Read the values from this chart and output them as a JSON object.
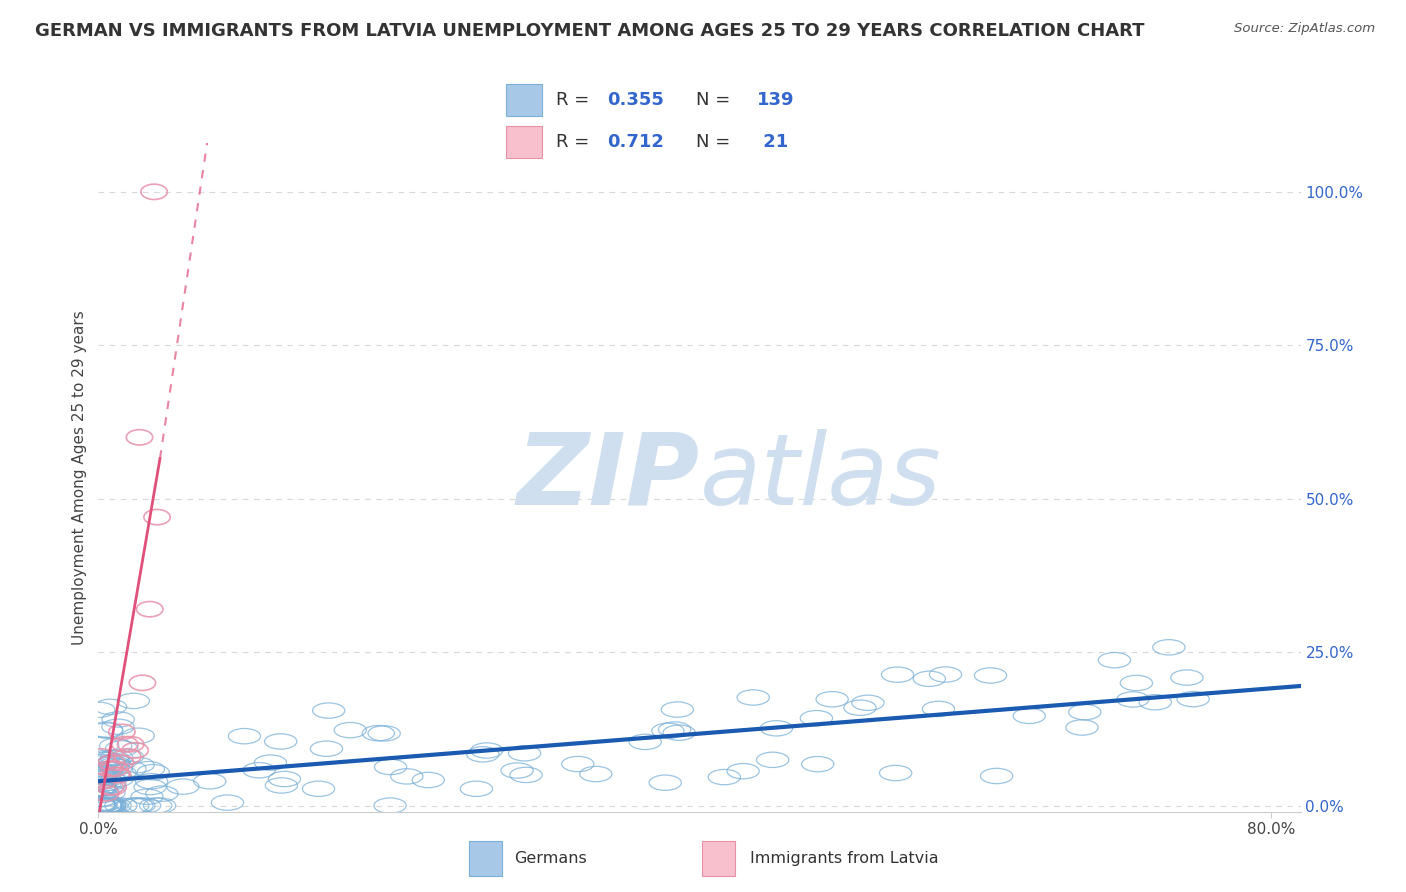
{
  "title": "GERMAN VS IMMIGRANTS FROM LATVIA UNEMPLOYMENT AMONG AGES 25 TO 29 YEARS CORRELATION CHART",
  "source": "Source: ZipAtlas.com",
  "ylabel": "Unemployment Among Ages 25 to 29 years",
  "xlim": [
    0.0,
    0.82
  ],
  "ylim": [
    -0.01,
    1.08
  ],
  "yticks_right": [
    0.0,
    0.25,
    0.5,
    0.75,
    1.0
  ],
  "ytick_labels_right": [
    "0.0%",
    "25.0%",
    "50.0%",
    "75.0%",
    "100.0%"
  ],
  "blue_color": "#a8c8e8",
  "blue_edge_color": "#7ab0d8",
  "pink_color": "#f8c0cc",
  "pink_edge_color": "#e890a8",
  "blue_line_color": "#1a5ab0",
  "pink_line_color": "#e0507a",
  "watermark_zip": "ZIP",
  "watermark_atlas": "atlas",
  "watermark_color": "#d0dff0",
  "background_color": "#ffffff",
  "grid_color": "#d8d8d8",
  "title_fontsize": 13,
  "legend_fontsize": 14,
  "axis_label_fontsize": 11,
  "tick_fontsize": 11,
  "R_german": 0.355,
  "N_german": 139,
  "R_latvia": 0.712,
  "N_latvia": 21,
  "seed": 7
}
